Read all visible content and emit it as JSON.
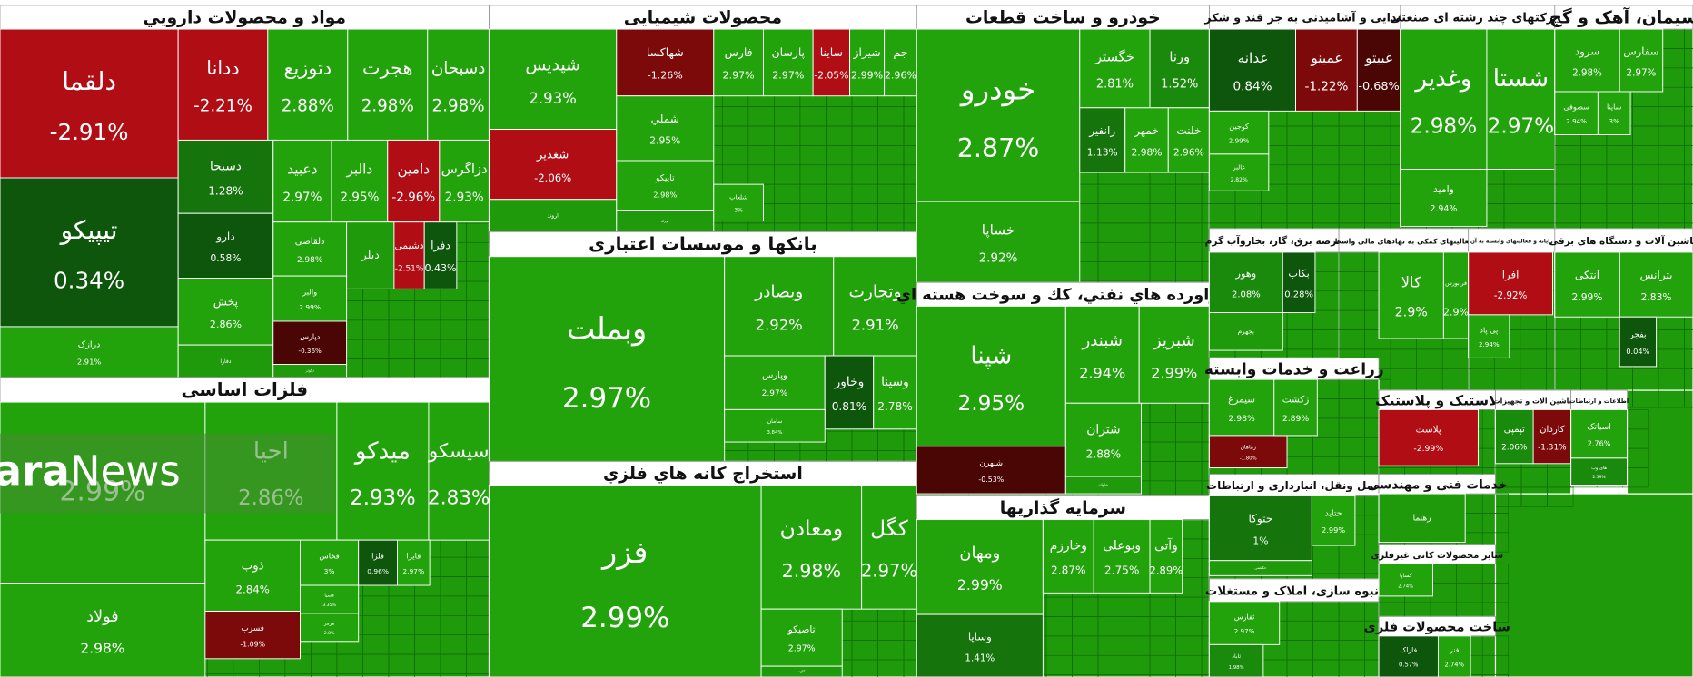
{
  "watermark": {
    "bold": "Shahrara",
    "light": "News"
  },
  "sectors": [
    {
      "title": "مواد و محصولات دارويي",
      "tiles": [
        {
          "label": "دلقما",
          "change": "-2.91%"
        },
        {
          "label": "تیپیکو",
          "change": "0.34%"
        },
        {
          "label": "درازک",
          "change": "2.91%"
        },
        {
          "label": "ددانا",
          "change": "-2.21%"
        },
        {
          "label": "دتوزیع",
          "change": "2.88%"
        },
        {
          "label": "هجرت",
          "change": "2.98%"
        },
        {
          "label": "دسبحان",
          "change": "2.98%"
        },
        {
          "label": "دسبحا",
          "change": "1.28%"
        },
        {
          "label": "دارو",
          "change": "0.58%"
        },
        {
          "label": "پخش",
          "change": "2.86%"
        },
        {
          "label": "دفارا"
        },
        {
          "label": "دعبید",
          "change": "2.97%"
        },
        {
          "label": "دالبر",
          "change": "2.95%"
        },
        {
          "label": "دامین",
          "change": "-2.96%"
        },
        {
          "label": "دزاگرس",
          "change": "2.93%"
        },
        {
          "label": "دلقاضی",
          "change": "2.98%"
        },
        {
          "label": "والبر",
          "change": "2.99%"
        },
        {
          "label": "دپارس",
          "change": "-0.36%"
        },
        {
          "label": "دکوثر"
        },
        {
          "label": "دیلر"
        },
        {
          "label": "دشیمی",
          "change": "-2.51%"
        },
        {
          "label": "دفرا",
          "change": "0.43%"
        }
      ]
    },
    {
      "title": "فلزات اساسی",
      "tiles": [
        {
          "change": "2.99%"
        },
        {
          "label": "فولاد",
          "change": "2.98%"
        },
        {
          "label": "احیا",
          "change": "2.86%"
        },
        {
          "label": "میدکو",
          "change": "2.93%"
        },
        {
          "label": "سیسکو",
          "change": "2.83%"
        },
        {
          "label": "ذوب",
          "change": "2.84%"
        },
        {
          "label": "فسرب",
          "change": "-1.09%"
        },
        {
          "label": "فخاس",
          "change": "3%"
        },
        {
          "label": "فسپا",
          "change": "3.35%"
        },
        {
          "label": "هرمز",
          "change": "2.8%"
        },
        {
          "label": "فلزا",
          "change": "0.96%"
        },
        {
          "label": "فایرا",
          "change": "2.97%"
        }
      ]
    },
    {
      "title": "محصولات شیمیایی",
      "tiles": [
        {
          "label": "شپدیس",
          "change": "2.93%"
        },
        {
          "label": "شغدیر",
          "change": "-2.06%"
        },
        {
          "label": "اروند"
        },
        {
          "label": "شهاکسا",
          "change": "-1.26%"
        },
        {
          "label": "شملي",
          "change": "2.95%"
        },
        {
          "label": "تاپیکو",
          "change": "2.98%"
        },
        {
          "label": "نوری"
        },
        {
          "label": "فارس",
          "change": "2.97%"
        },
        {
          "label": "پارسان",
          "change": "2.97%"
        },
        {
          "label": "ساینا",
          "change": "-2.05%"
        },
        {
          "label": "شیراز",
          "change": "2.99%"
        },
        {
          "label": "جم",
          "change": "2.96%"
        },
        {
          "label": "شلعاب",
          "change": "3%"
        }
      ]
    },
    {
      "title": "بانکها و موسسات اعتباری",
      "tiles": [
        {
          "label": "وبملت",
          "change": "2.97%"
        },
        {
          "label": "وبصادر",
          "change": "2.92%"
        },
        {
          "label": "وتجارت",
          "change": "2.91%"
        },
        {
          "label": "وپارس",
          "change": "2.97%"
        },
        {
          "label": "وخاور",
          "change": "0.81%"
        },
        {
          "label": "وسینا",
          "change": "2.78%"
        },
        {
          "label": "سامان",
          "change": "3.84%"
        }
      ]
    },
    {
      "title": "استخراج کانه هاي فلزي",
      "tiles": [
        {
          "label": "فزر",
          "change": "2.99%"
        },
        {
          "label": "ومعادن",
          "change": "2.98%"
        },
        {
          "label": "کگل",
          "change": "2.97%"
        },
        {
          "label": "تاصیکو",
          "change": "2.97%"
        },
        {
          "label": "کاوه"
        }
      ]
    },
    {
      "title": "خودرو و ساخت قطعات",
      "tiles": [
        {
          "label": "خودرو",
          "change": "2.87%"
        },
        {
          "label": "خساپا",
          "change": "2.92%"
        },
        {
          "label": "خگستر",
          "change": "2.81%"
        },
        {
          "label": "ورنا",
          "change": "1.52%"
        },
        {
          "label": "رانفیر",
          "change": "1.13%"
        },
        {
          "label": "خمهر",
          "change": "2.98%"
        },
        {
          "label": "خلنت",
          "change": "2.96%"
        }
      ]
    },
    {
      "title": "فراورده هاي نفتي، كك و سوخت هسته اي",
      "tiles": [
        {
          "label": "شپنا",
          "change": "2.95%"
        },
        {
          "label": "شبهرن",
          "change": "-0.53%"
        },
        {
          "label": "شبندر",
          "change": "2.94%"
        },
        {
          "label": "شبریز",
          "change": "2.99%"
        },
        {
          "label": "شتران",
          "change": "2.88%"
        },
        {
          "label": "شاوان"
        }
      ]
    },
    {
      "title": "سرمایه گذاریها",
      "tiles": [
        {
          "label": "ومهان",
          "change": "2.99%"
        },
        {
          "label": "وساپا",
          "change": "1.41%"
        },
        {
          "label": "وخارزم",
          "change": "2.87%"
        },
        {
          "label": "وبوعلی",
          "change": "2.75%"
        },
        {
          "label": "وآتی",
          "change": "2.89%"
        }
      ]
    },
    {
      "title": "غذایی و آشامیدنی به جز قند و شکر",
      "tiles": [
        {
          "label": "غدانه",
          "change": "0.84%"
        },
        {
          "label": "غمینو",
          "change": "-1.22%"
        },
        {
          "label": "غبیتو",
          "change": "-0.68%"
        },
        {
          "label": "کوجین",
          "change": "2.99%"
        },
        {
          "label": "غالبر",
          "change": "2.82%"
        }
      ]
    },
    {
      "title": "شرکتهای چند رشته ای صنعتی",
      "tiles": [
        {
          "label": "وغدیر",
          "change": "2.98%"
        },
        {
          "label": "شستا",
          "change": "2.97%"
        },
        {
          "label": "وامید",
          "change": "2.94%"
        }
      ]
    },
    {
      "title": "سیمان، آهک و گچ",
      "tiles": [
        {
          "label": "سرود",
          "change": "2.98%"
        },
        {
          "label": "سفارس",
          "change": "2.97%"
        },
        {
          "label": "سصوفی",
          "change": "2.94%"
        },
        {
          "label": "ساینا",
          "change": "3%"
        }
      ]
    },
    {
      "title": "عرضه برق، گاز، بخاروآب گرم",
      "tiles": [
        {
          "label": "وهور",
          "change": "2.08%"
        },
        {
          "label": "بجهرم"
        },
        {
          "label": "بکاب",
          "change": "0.28%"
        }
      ]
    },
    {
      "title": "فعالیتهای کمکی به نهادهای مالی واسط",
      "tiles": [
        {
          "label": "کالا",
          "change": "2.9%"
        },
        {
          "label": "فرابورس",
          "change": "2.9%"
        }
      ]
    },
    {
      "title": "رایانه و فعالیتهای وابسته به آن",
      "tiles": [
        {
          "label": "افرا",
          "change": "-2.92%"
        },
        {
          "label": "پی پاد",
          "change": "2.94%"
        }
      ]
    },
    {
      "title": "ماشین آلات و دستگاه های برقی",
      "tiles": [
        {
          "label": "بترانس",
          "change": "2.83%"
        },
        {
          "label": "انتکی",
          "change": "2.99%"
        },
        {
          "label": "بفجر",
          "change": "0.04%"
        }
      ]
    },
    {
      "title": "زراعت و خدمات وابسته",
      "tiles": [
        {
          "label": "سیمرغ",
          "change": "2.98%"
        },
        {
          "label": "زماهان",
          "change": "-1.80%"
        },
        {
          "label": "زکشت",
          "change": "2.89%"
        }
      ]
    },
    {
      "title": "حمل ونقل، انبارداری و ارتباطات",
      "tiles": [
        {
          "label": "حتوکا",
          "change": "1%"
        },
        {
          "label": "حتاید",
          "change": "2.99%"
        },
        {
          "label": "حکشتی"
        }
      ]
    },
    {
      "title": "انبوه سازی، املاک و مستغلات",
      "tiles": [
        {
          "label": "ثفارس",
          "change": "2.97%"
        },
        {
          "label": "ثاباد",
          "change": "1.98%"
        }
      ]
    },
    {
      "title": "لاستیک و پلاستیک",
      "tiles": [
        {
          "label": "پلاست",
          "change": "-2.99%"
        }
      ]
    },
    {
      "title": "ماشین آلات و تجهیزات",
      "tiles": [
        {
          "label": "کاردان",
          "change": "-1.31%"
        },
        {
          "label": "تپمپی",
          "change": "2.06%"
        }
      ]
    },
    {
      "title": "اطلاعات و ارتباطات",
      "tiles": [
        {
          "label": "اسیاتک",
          "change": "2.76%"
        },
        {
          "label": "های وب",
          "change": "2.39%"
        }
      ]
    },
    {
      "title": "خدمات فنی و مهندسی",
      "tiles": [
        {
          "label": "رهنما"
        }
      ]
    },
    {
      "title": "سایر محصولات کانی غیرفلزی",
      "tiles": [
        {
          "label": "کساپا",
          "change": "2.74%"
        }
      ]
    },
    {
      "title": "ساخت محصولات فلزی",
      "tiles": [
        {
          "label": "فاراک",
          "change": "0.57%"
        },
        {
          "label": "فنر",
          "change": "2.74%"
        }
      ]
    }
  ]
}
